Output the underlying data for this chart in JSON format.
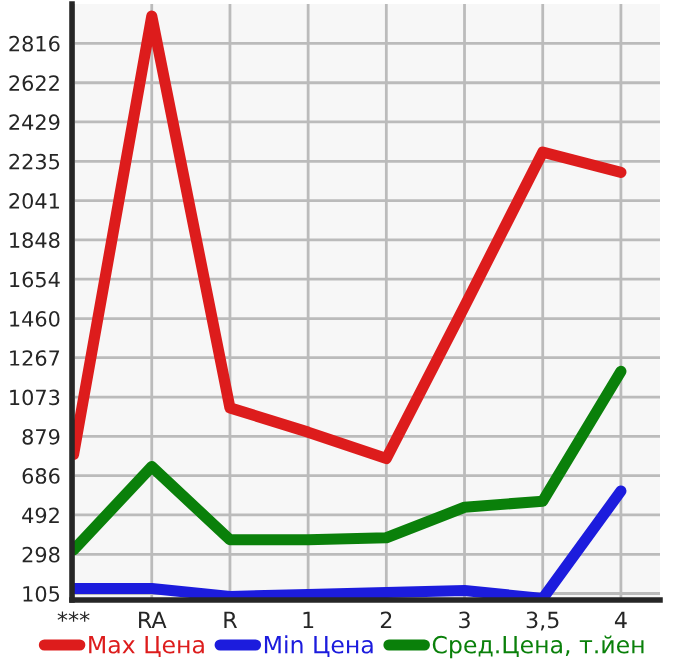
{
  "chart_data": {
    "type": "line",
    "categories": [
      "***",
      "RA",
      "R",
      "1",
      "2",
      "3",
      "3,5",
      "4"
    ],
    "series": [
      {
        "name": "Max Цена",
        "color": "#dd1c1c",
        "values": [
          790,
          2950,
          1020,
          900,
          770,
          1520,
          2280,
          2180
        ]
      },
      {
        "name": "Min Цена",
        "color": "#1c1cdd",
        "values": [
          130,
          130,
          90,
          100,
          110,
          120,
          80,
          610
        ]
      },
      {
        "name": "Сред.Цена, т.йен",
        "color": "#0a800a",
        "values": [
          320,
          730,
          370,
          370,
          380,
          530,
          560,
          1200
        ]
      }
    ],
    "ylim": [
      73,
      3010
    ],
    "yticks": [
      105,
      298,
      492,
      686,
      879,
      1073,
      1267,
      1460,
      1654,
      1848,
      2041,
      2235,
      2429,
      2622,
      2816
    ],
    "grid": true,
    "legend": "bottom",
    "marker": "none",
    "line_style": "solid"
  }
}
